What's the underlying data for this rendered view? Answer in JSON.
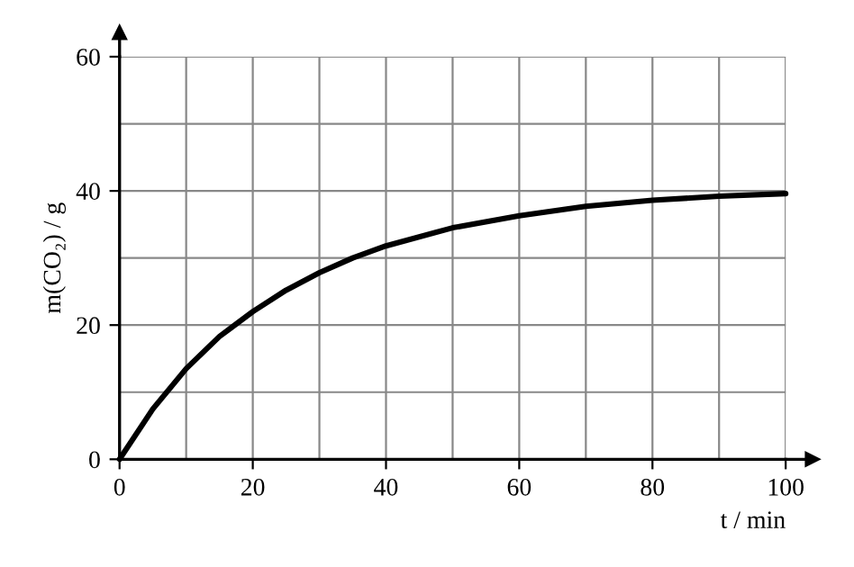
{
  "chart_data": {
    "type": "line",
    "xlabel": "t / min",
    "ylabel": "m(CO₂) / g",
    "x": [
      0,
      5,
      10,
      15,
      20,
      25,
      30,
      35,
      40,
      50,
      60,
      70,
      80,
      90,
      100
    ],
    "series": [
      {
        "color": "#000000",
        "values": [
          0,
          7.5,
          13.5,
          18.3,
          22,
          25.2,
          27.8,
          30,
          31.8,
          34.5,
          36.3,
          37.7,
          38.6,
          39.2,
          39.6
        ]
      }
    ],
    "xlim": [
      0,
      100
    ],
    "ylim": [
      0,
      60
    ],
    "xticks": [
      0,
      {
        "value": 10,
        "label": null
      },
      20,
      {
        "value": 30,
        "label": null
      },
      40,
      {
        "value": 50,
        "label": null
      },
      60,
      {
        "value": 70,
        "label": null
      },
      80,
      {
        "value": 90,
        "label": null
      },
      100
    ],
    "yticks": [
      0,
      {
        "value": 10,
        "label": null
      },
      20,
      {
        "value": 30,
        "label": null
      },
      40,
      {
        "value": 50,
        "label": null
      },
      60
    ],
    "grid": true,
    "marker": "none",
    "line_style": "solid"
  }
}
